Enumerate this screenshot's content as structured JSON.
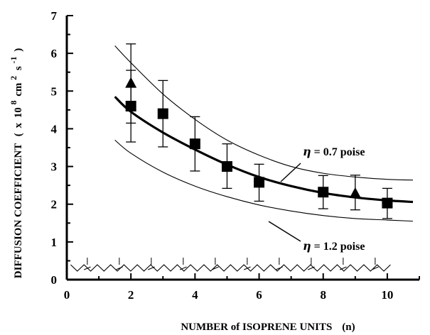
{
  "chart_data": {
    "type": "scatter",
    "xlabel": "NUMBER of ISOPRENE UNITS",
    "xlabel_suffix": "(n)",
    "ylabel_main": "DIFFUSION COEFFICIENT",
    "ylabel_paren_open": "(",
    "ylabel_x": "x",
    "ylabel_ten": "10",
    "ylabel_exp8": "8",
    "ylabel_cm": "cm",
    "ylabel_exp2": "2",
    "ylabel_s": "s",
    "ylabel_expm1": "-1",
    "ylabel_paren_close": ")",
    "xlim": [
      0,
      11
    ],
    "ylim": [
      0,
      7
    ],
    "x_ticks": [
      0,
      2,
      4,
      6,
      8,
      10
    ],
    "y_ticks": [
      0,
      1,
      2,
      3,
      4,
      5,
      6,
      7
    ],
    "grid": false,
    "series": [
      {
        "marker": "square",
        "color": "#000000",
        "x": [
          2,
          3,
          4,
          5,
          6,
          8,
          10
        ],
        "y": [
          4.6,
          4.4,
          3.6,
          3.0,
          2.58,
          2.32,
          2.03
        ],
        "yerr_low": [
          3.65,
          3.52,
          2.88,
          2.42,
          2.08,
          1.88,
          1.62
        ],
        "yerr_high": [
          5.55,
          5.28,
          4.32,
          3.6,
          3.06,
          2.76,
          2.42
        ]
      },
      {
        "marker": "triangle",
        "color": "#000000",
        "x": [
          2,
          9
        ],
        "y": [
          5.2,
          2.28
        ],
        "yerr_low": [
          4.15,
          1.85
        ],
        "yerr_high": [
          6.25,
          2.77
        ]
      }
    ],
    "curves": [
      {
        "style": "thick",
        "x": [
          1.5,
          2,
          3,
          4,
          5,
          6,
          7,
          8,
          9,
          10,
          10.8
        ],
        "y": [
          4.85,
          4.45,
          3.9,
          3.45,
          3.05,
          2.72,
          2.48,
          2.3,
          2.18,
          2.1,
          2.06
        ]
      },
      {
        "style": "thin",
        "x": [
          1.5,
          2,
          3,
          4,
          5,
          6,
          7,
          8,
          9,
          10,
          10.8
        ],
        "y": [
          6.2,
          5.75,
          4.92,
          4.25,
          3.7,
          3.3,
          3.0,
          2.82,
          2.72,
          2.66,
          2.64
        ]
      },
      {
        "style": "thin",
        "x": [
          1.5,
          2,
          3,
          4,
          5,
          6,
          7,
          8,
          9,
          10,
          10.8
        ],
        "y": [
          3.7,
          3.35,
          2.85,
          2.48,
          2.2,
          1.98,
          1.82,
          1.7,
          1.62,
          1.58,
          1.55
        ]
      }
    ],
    "annotations": [
      {
        "eta": "η",
        "text": "= 0.7 poise"
      },
      {
        "eta": "η",
        "text": "= 1.2 poise"
      }
    ]
  }
}
